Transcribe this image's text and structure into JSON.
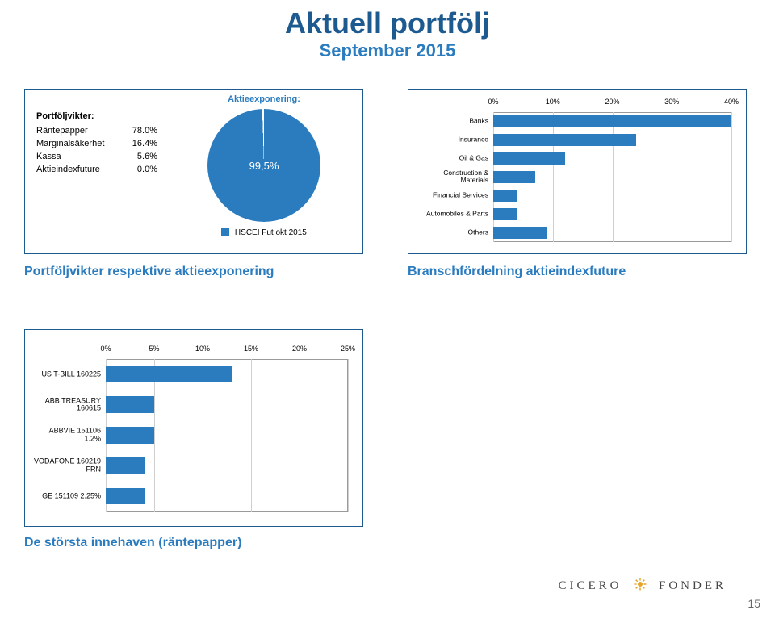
{
  "title": "Aktuell portfölj",
  "subtitle": "September 2015",
  "weights": {
    "header": "Portföljvikter:",
    "rows": [
      {
        "label": "Räntepapper",
        "value": "78.0%"
      },
      {
        "label": "Marginalsäkerhet",
        "value": "16.4%"
      },
      {
        "label": "Kassa",
        "value": "5.6%"
      },
      {
        "label": "Aktieindexfuture",
        "value": "0.0%"
      }
    ]
  },
  "pie": {
    "title": "Aktieexponering:",
    "slice_value": "99,5%",
    "slice_color": "#2b7cbf",
    "remainder_color": "#ffffff",
    "legend_label": "HSCEI Fut okt 2015",
    "slice_pct": 99.5
  },
  "sector_chart": {
    "type": "horizontal-bar",
    "x_ticks": [
      0,
      10,
      20,
      30,
      40
    ],
    "x_tick_labels": [
      "0%",
      "10%",
      "20%",
      "30%",
      "40%"
    ],
    "x_max": 40,
    "bar_color": "#2b7cbf",
    "grid_color": "#cfcfcf",
    "bars": [
      {
        "label": "Banks",
        "value": 40
      },
      {
        "label": "Insurance",
        "value": 24
      },
      {
        "label": "Oil & Gas",
        "value": 12
      },
      {
        "label": "Construction & Materials",
        "value": 7
      },
      {
        "label": "Financial Services",
        "value": 4
      },
      {
        "label": "Automobiles & Parts",
        "value": 4
      },
      {
        "label": "Others",
        "value": 9
      }
    ]
  },
  "caption_left": "Portföljvikter respektive aktieexponering",
  "caption_right": "Branschfördelning aktieindexfuture",
  "holdings_chart": {
    "type": "horizontal-bar",
    "x_ticks": [
      0,
      5,
      10,
      15,
      20,
      25
    ],
    "x_tick_labels": [
      "0%",
      "5%",
      "10%",
      "15%",
      "20%",
      "25%"
    ],
    "x_max": 25,
    "bar_color": "#2b7cbf",
    "grid_color": "#cfcfcf",
    "bars": [
      {
        "label": "US T-BILL 160225",
        "value": 13
      },
      {
        "label": "ABB TREASURY 160615",
        "value": 5
      },
      {
        "label": "ABBVIE 151106 1.2%",
        "value": 5
      },
      {
        "label": "VODAFONE 160219 FRN",
        "value": 4
      },
      {
        "label": "GE 151109 2.25%",
        "value": 4
      }
    ]
  },
  "caption_bottom": "De största innehaven (räntepapper)",
  "page_number": "15",
  "logo_text_1": "CICERO",
  "logo_text_2": "FONDER"
}
